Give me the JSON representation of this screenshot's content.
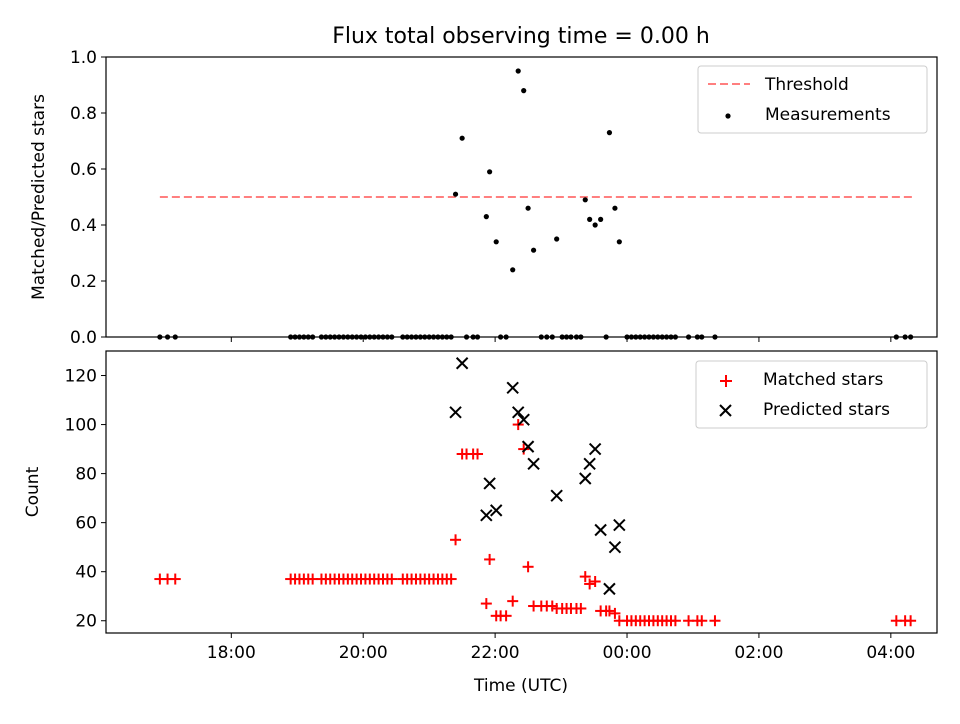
{
  "figure": {
    "title": "Flux total observing time = 0.00 h",
    "x_axis_label": "Time (UTC)",
    "x_tick_labels": [
      "18:00",
      "20:00",
      "22:00",
      "00:00",
      "02:00",
      "04:00"
    ]
  },
  "chart_data": [
    {
      "type": "scatter",
      "title": "Flux total observing time = 0.00 h",
      "ylabel": "Matched/Predicted stars",
      "xlabel": "",
      "xlim_hours": [
        16.1,
        28.7
      ],
      "ylim": [
        0,
        1.0
      ],
      "y_ticks": [
        0.0,
        0.2,
        0.4,
        0.6,
        0.8,
        1.0
      ],
      "y_tick_labels": [
        "0.0",
        "0.2",
        "0.4",
        "0.6",
        "0.8",
        "1.0"
      ],
      "legend": {
        "position": "top-right",
        "entries": [
          "Threshold",
          "Measurements"
        ]
      },
      "threshold": {
        "name": "Threshold",
        "value": 0.5,
        "x_range": [
          "16:55",
          "04:20"
        ],
        "color": "#ff7f7f",
        "style": "dashed"
      },
      "series": [
        {
          "name": "Measurements",
          "color": "#000000",
          "marker": "dot",
          "points": [
            [
              "16:55",
              0.0
            ],
            [
              "17:02",
              0.0
            ],
            [
              "17:09",
              0.0
            ],
            [
              "18:54",
              0.0
            ],
            [
              "18:58",
              0.0
            ],
            [
              "19:02",
              0.0
            ],
            [
              "19:06",
              0.0
            ],
            [
              "19:10",
              0.0
            ],
            [
              "19:14",
              0.0
            ],
            [
              "19:22",
              0.0
            ],
            [
              "19:26",
              0.0
            ],
            [
              "19:30",
              0.0
            ],
            [
              "19:34",
              0.0
            ],
            [
              "19:38",
              0.0
            ],
            [
              "19:42",
              0.0
            ],
            [
              "19:46",
              0.0
            ],
            [
              "19:50",
              0.0
            ],
            [
              "19:54",
              0.0
            ],
            [
              "19:58",
              0.0
            ],
            [
              "20:02",
              0.0
            ],
            [
              "20:06",
              0.0
            ],
            [
              "20:10",
              0.0
            ],
            [
              "20:14",
              0.0
            ],
            [
              "20:18",
              0.0
            ],
            [
              "20:22",
              0.0
            ],
            [
              "20:26",
              0.0
            ],
            [
              "20:36",
              0.0
            ],
            [
              "20:40",
              0.0
            ],
            [
              "20:44",
              0.0
            ],
            [
              "20:48",
              0.0
            ],
            [
              "20:52",
              0.0
            ],
            [
              "20:56",
              0.0
            ],
            [
              "21:00",
              0.0
            ],
            [
              "21:04",
              0.0
            ],
            [
              "21:08",
              0.0
            ],
            [
              "21:12",
              0.0
            ],
            [
              "21:16",
              0.0
            ],
            [
              "21:20",
              0.0
            ],
            [
              "21:24",
              0.51
            ],
            [
              "21:30",
              0.71
            ],
            [
              "21:34",
              0.0
            ],
            [
              "21:40",
              0.0
            ],
            [
              "21:44",
              0.0
            ],
            [
              "21:52",
              0.43
            ],
            [
              "21:55",
              0.59
            ],
            [
              "22:01",
              0.34
            ],
            [
              "22:05",
              0.0
            ],
            [
              "22:10",
              0.0
            ],
            [
              "22:16",
              0.24
            ],
            [
              "22:21",
              0.95
            ],
            [
              "22:26",
              0.88
            ],
            [
              "22:30",
              0.46
            ],
            [
              "22:35",
              0.31
            ],
            [
              "22:42",
              0.0
            ],
            [
              "22:47",
              0.0
            ],
            [
              "22:52",
              0.0
            ],
            [
              "22:56",
              0.35
            ],
            [
              "23:01",
              0.0
            ],
            [
              "23:05",
              0.0
            ],
            [
              "23:09",
              0.0
            ],
            [
              "23:14",
              0.0
            ],
            [
              "23:18",
              0.0
            ],
            [
              "23:22",
              0.49
            ],
            [
              "23:26",
              0.42
            ],
            [
              "23:31",
              0.4
            ],
            [
              "23:36",
              0.42
            ],
            [
              "23:41",
              0.0
            ],
            [
              "23:44",
              0.73
            ],
            [
              "23:49",
              0.46
            ],
            [
              "23:53",
              0.34
            ],
            [
              "00:00",
              0.0
            ],
            [
              "00:04",
              0.0
            ],
            [
              "00:08",
              0.0
            ],
            [
              "00:12",
              0.0
            ],
            [
              "00:16",
              0.0
            ],
            [
              "00:20",
              0.0
            ],
            [
              "00:24",
              0.0
            ],
            [
              "00:28",
              0.0
            ],
            [
              "00:32",
              0.0
            ],
            [
              "00:36",
              0.0
            ],
            [
              "00:40",
              0.0
            ],
            [
              "00:44",
              0.0
            ],
            [
              "00:56",
              0.0
            ],
            [
              "01:04",
              0.0
            ],
            [
              "01:08",
              0.0
            ],
            [
              "01:20",
              0.0
            ],
            [
              "04:05",
              0.0
            ],
            [
              "04:13",
              0.0
            ],
            [
              "04:18",
              0.0
            ]
          ]
        }
      ]
    },
    {
      "type": "scatter",
      "title": "",
      "ylabel": "Count",
      "xlabel": "Time (UTC)",
      "xlim_hours": [
        16.1,
        28.7
      ],
      "ylim": [
        15,
        130
      ],
      "y_ticks": [
        20,
        40,
        60,
        80,
        100,
        120
      ],
      "y_tick_labels": [
        "20",
        "40",
        "60",
        "80",
        "100",
        "120"
      ],
      "legend": {
        "position": "top-right",
        "entries": [
          "Matched stars",
          "Predicted stars"
        ]
      },
      "series": [
        {
          "name": "Matched stars",
          "color": "#ff0000",
          "marker": "plus",
          "points": [
            [
              "16:55",
              37
            ],
            [
              "17:02",
              37
            ],
            [
              "17:09",
              37
            ],
            [
              "18:54",
              37
            ],
            [
              "18:58",
              37
            ],
            [
              "19:02",
              37
            ],
            [
              "19:06",
              37
            ],
            [
              "19:10",
              37
            ],
            [
              "19:14",
              37
            ],
            [
              "19:22",
              37
            ],
            [
              "19:26",
              37
            ],
            [
              "19:30",
              37
            ],
            [
              "19:34",
              37
            ],
            [
              "19:38",
              37
            ],
            [
              "19:42",
              37
            ],
            [
              "19:46",
              37
            ],
            [
              "19:50",
              37
            ],
            [
              "19:54",
              37
            ],
            [
              "19:58",
              37
            ],
            [
              "20:02",
              37
            ],
            [
              "20:06",
              37
            ],
            [
              "20:10",
              37
            ],
            [
              "20:14",
              37
            ],
            [
              "20:18",
              37
            ],
            [
              "20:22",
              37
            ],
            [
              "20:26",
              37
            ],
            [
              "20:36",
              37
            ],
            [
              "20:40",
              37
            ],
            [
              "20:44",
              37
            ],
            [
              "20:48",
              37
            ],
            [
              "20:52",
              37
            ],
            [
              "20:56",
              37
            ],
            [
              "21:00",
              37
            ],
            [
              "21:04",
              37
            ],
            [
              "21:08",
              37
            ],
            [
              "21:12",
              37
            ],
            [
              "21:16",
              37
            ],
            [
              "21:20",
              37
            ],
            [
              "21:24",
              53
            ],
            [
              "21:30",
              88
            ],
            [
              "21:34",
              88
            ],
            [
              "21:40",
              88
            ],
            [
              "21:44",
              88
            ],
            [
              "21:52",
              27
            ],
            [
              "21:55",
              45
            ],
            [
              "22:01",
              22
            ],
            [
              "22:05",
              22
            ],
            [
              "22:10",
              22
            ],
            [
              "22:16",
              28
            ],
            [
              "22:21",
              100
            ],
            [
              "22:26",
              90
            ],
            [
              "22:30",
              42
            ],
            [
              "22:35",
              26
            ],
            [
              "22:42",
              26
            ],
            [
              "22:47",
              26
            ],
            [
              "22:52",
              26
            ],
            [
              "22:56",
              25
            ],
            [
              "23:01",
              25
            ],
            [
              "23:05",
              25
            ],
            [
              "23:09",
              25
            ],
            [
              "23:14",
              25
            ],
            [
              "23:18",
              25
            ],
            [
              "23:22",
              38
            ],
            [
              "23:26",
              35
            ],
            [
              "23:31",
              36
            ],
            [
              "23:36",
              24
            ],
            [
              "23:41",
              24
            ],
            [
              "23:44",
              24
            ],
            [
              "23:49",
              23
            ],
            [
              "23:53",
              20
            ],
            [
              "00:00",
              20
            ],
            [
              "00:04",
              20
            ],
            [
              "00:08",
              20
            ],
            [
              "00:12",
              20
            ],
            [
              "00:16",
              20
            ],
            [
              "00:20",
              20
            ],
            [
              "00:24",
              20
            ],
            [
              "00:28",
              20
            ],
            [
              "00:32",
              20
            ],
            [
              "00:36",
              20
            ],
            [
              "00:40",
              20
            ],
            [
              "00:44",
              20
            ],
            [
              "00:56",
              20
            ],
            [
              "01:04",
              20
            ],
            [
              "01:08",
              20
            ],
            [
              "01:20",
              20
            ],
            [
              "04:05",
              20
            ],
            [
              "04:13",
              20
            ],
            [
              "04:18",
              20
            ]
          ]
        },
        {
          "name": "Predicted stars",
          "color": "#000000",
          "marker": "x",
          "points": [
            [
              "21:24",
              105
            ],
            [
              "21:30",
              125
            ],
            [
              "21:52",
              63
            ],
            [
              "21:55",
              76
            ],
            [
              "22:01",
              65
            ],
            [
              "22:16",
              115
            ],
            [
              "22:21",
              105
            ],
            [
              "22:26",
              102
            ],
            [
              "22:30",
              91
            ],
            [
              "22:35",
              84
            ],
            [
              "22:56",
              71
            ],
            [
              "23:22",
              78
            ],
            [
              "23:26",
              84
            ],
            [
              "23:31",
              90
            ],
            [
              "23:36",
              57
            ],
            [
              "23:44",
              33
            ],
            [
              "23:49",
              50
            ],
            [
              "23:53",
              59
            ]
          ]
        }
      ]
    }
  ]
}
